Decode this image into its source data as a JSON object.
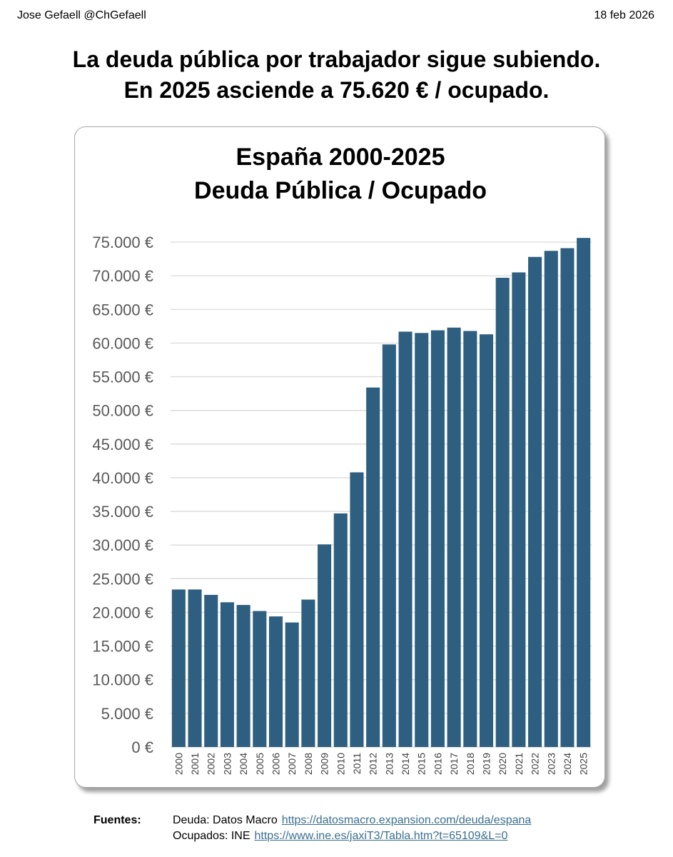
{
  "header": {
    "author": "Jose Gefaell @ChGefaell",
    "date": "18 feb 2026"
  },
  "headline": {
    "line1": "La deuda pública por trabajador sigue subiendo.",
    "line2": "En 2025 asciende a 75.620 € / ocupado."
  },
  "chart_data": {
    "type": "bar",
    "title_line1": "España 2000-2025",
    "title_line2": "Deuda Pública / Ocupado",
    "xlabel": "",
    "ylabel": "",
    "ylim": [
      0,
      75000
    ],
    "ytick_step": 5000,
    "ytick_labels": [
      "0 €",
      "5.000 €",
      "10.000 €",
      "15.000 €",
      "20.000 €",
      "25.000 €",
      "30.000 €",
      "35.000 €",
      "40.000 €",
      "45.000 €",
      "50.000 €",
      "55.000 €",
      "60.000 €",
      "65.000 €",
      "70.000 €",
      "75.000 €"
    ],
    "grid": true,
    "bar_color": "#2e5f80",
    "categories": [
      "2000",
      "2001",
      "2002",
      "2003",
      "2004",
      "2005",
      "2006",
      "2007",
      "2008",
      "2009",
      "2010",
      "2011",
      "2012",
      "2013",
      "2014",
      "2015",
      "2016",
      "2017",
      "2018",
      "2019",
      "2020",
      "2021",
      "2022",
      "2023",
      "2024",
      "2025"
    ],
    "values": [
      23400,
      23400,
      22600,
      21500,
      21100,
      20200,
      19400,
      18500,
      21900,
      30100,
      34700,
      40800,
      53400,
      59800,
      61700,
      61500,
      61900,
      62300,
      61800,
      61300,
      69700,
      70500,
      72800,
      73700,
      74100,
      75620
    ]
  },
  "sources": {
    "label": "Fuentes:",
    "line1_text": "Deuda: Datos Macro",
    "line1_link": "https://datosmacro.expansion.com/deuda/espana",
    "line2_text": "Ocupados: INE",
    "line2_link": "https://www.ine.es/jaxiT3/Tabla.htm?t=65109&L=0"
  }
}
